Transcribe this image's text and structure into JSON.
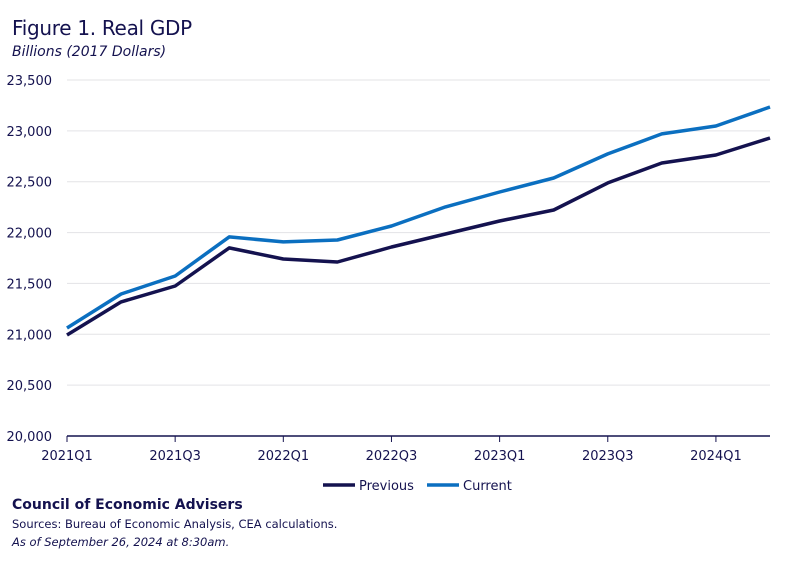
{
  "chart_data": {
    "type": "line",
    "title": "Figure 1. Real GDP",
    "subtitle": "Billions (2017 Dollars)",
    "xlabel": "",
    "ylabel": "",
    "x": [
      "2021Q1",
      "2021Q2",
      "2021Q3",
      "2021Q4",
      "2022Q1",
      "2022Q2",
      "2022Q3",
      "2022Q4",
      "2023Q1",
      "2023Q2",
      "2023Q3",
      "2023Q4",
      "2024Q1",
      "2024Q2"
    ],
    "x_tick_labels": [
      "2021Q1",
      "2021Q3",
      "2022Q1",
      "2022Q3",
      "2023Q1",
      "2023Q3",
      "2024Q1"
    ],
    "ylim": [
      20000,
      23500
    ],
    "y_ticks": [
      20000,
      20500,
      21000,
      21500,
      22000,
      22500,
      23000,
      23500
    ],
    "y_tick_labels": [
      "20,000",
      "20,500",
      "21,000",
      "21,500",
      "22,000",
      "22,500",
      "23,000",
      "23,500"
    ],
    "grid": "horizontal",
    "legend_position": "bottom",
    "series": [
      {
        "name": "Previous",
        "color": "#14124f",
        "values": [
          20993,
          21318,
          21475,
          21849,
          21740,
          21711,
          21858,
          21986,
          22114,
          22222,
          22488,
          22684,
          22763,
          22930
        ]
      },
      {
        "name": "Current",
        "color": "#0b6fc0",
        "values": [
          21062,
          21396,
          21573,
          21957,
          21908,
          21927,
          22065,
          22252,
          22399,
          22537,
          22773,
          22970,
          23048,
          23235
        ]
      }
    ]
  },
  "footer": {
    "org": "Council of Economic Advisers",
    "sources": "Sources: Bureau of Economic Analysis, CEA calculations.",
    "as_of": "As of September 26, 2024 at 8:30am."
  }
}
